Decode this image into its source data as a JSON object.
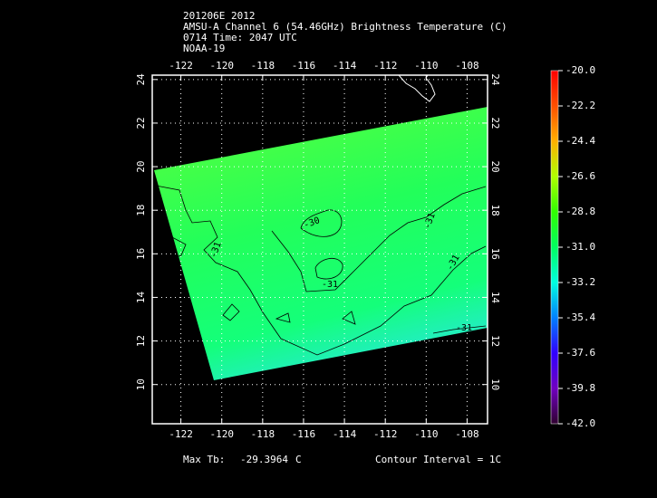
{
  "header": {
    "lines": [
      "201206E 2012",
      "AMSU-A Channel 6 (54.46GHz) Brightness Temperature (C)",
      "0714 Time: 2047 UTC",
      "NOAA-19"
    ]
  },
  "map": {
    "xlim": [
      -123.4,
      -107.0
    ],
    "ylim": [
      8.2,
      24.2
    ],
    "xticks": [
      -122,
      -120,
      -118,
      -116,
      -114,
      -112,
      -110,
      -108
    ],
    "yticks": [
      10,
      12,
      14,
      16,
      18,
      20,
      22,
      24
    ],
    "grid": true,
    "contour_labels": [
      "-30",
      "-31",
      "-31",
      "-31",
      "-31",
      "-31"
    ]
  },
  "colorbar": {
    "lim": [
      -42,
      -20
    ],
    "ticks": [
      {
        "value": -20,
        "label": "-20.0"
      },
      {
        "value": -22.2,
        "label": "-22.2"
      },
      {
        "value": -24.4,
        "label": "-24.4"
      },
      {
        "value": -26.6,
        "label": "-26.6"
      },
      {
        "value": -28.8,
        "label": "-28.8"
      },
      {
        "value": -31,
        "label": "-31.0"
      },
      {
        "value": -33.2,
        "label": "-33.2"
      },
      {
        "value": -35.4,
        "label": "-35.4"
      },
      {
        "value": -37.6,
        "label": "-37.6"
      },
      {
        "value": -39.8,
        "label": "-39.8"
      },
      {
        "value": -42,
        "label": "-42.0"
      }
    ]
  },
  "footer": {
    "max_label": "Max Tb:",
    "max_value": "-29.3964",
    "max_unit": "C",
    "contour_interval": "Contour Interval = 1C"
  }
}
